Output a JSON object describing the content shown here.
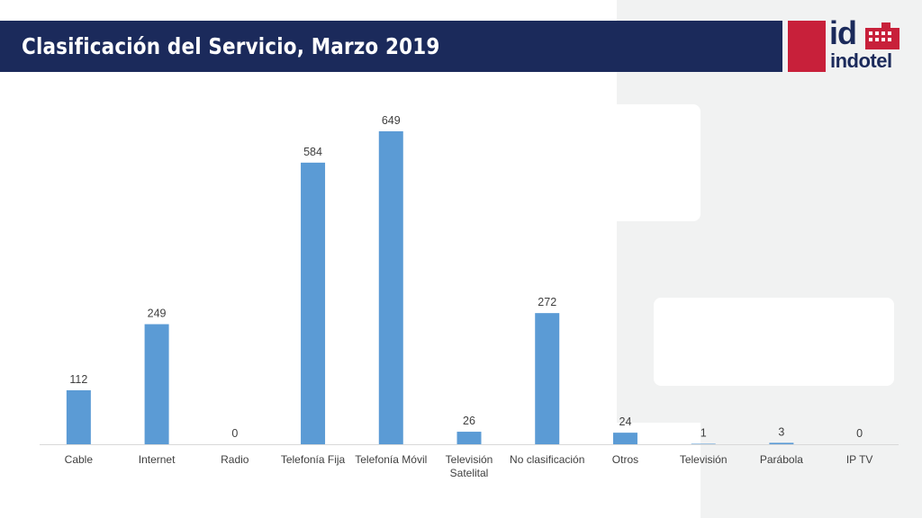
{
  "slide": {
    "title": "Clasificación del Servicio, Marzo 2019"
  },
  "logo": {
    "mark": "id",
    "name": "indotel",
    "colors": {
      "red": "#c8203a",
      "navy": "#1b2a5b"
    }
  },
  "colors": {
    "title_bar": "#1b2a5b",
    "bar": "#5b9bd5",
    "panel": "#f1f2f2"
  },
  "chart_data": {
    "type": "bar",
    "categories": [
      "Cable",
      "Internet",
      "Radio",
      "Telefonía Fija",
      "Telefonía Móvil",
      "Televisión Satelital",
      "No clasificación",
      "Otros",
      "Televisión",
      "Parábola",
      "IP TV"
    ],
    "values": [
      112,
      249,
      0,
      584,
      649,
      26,
      272,
      24,
      1,
      3,
      0
    ],
    "title": "",
    "xlabel": "",
    "ylabel": "",
    "ylim": [
      0,
      649
    ],
    "data_labels": true,
    "grid": false,
    "legend": "none"
  }
}
